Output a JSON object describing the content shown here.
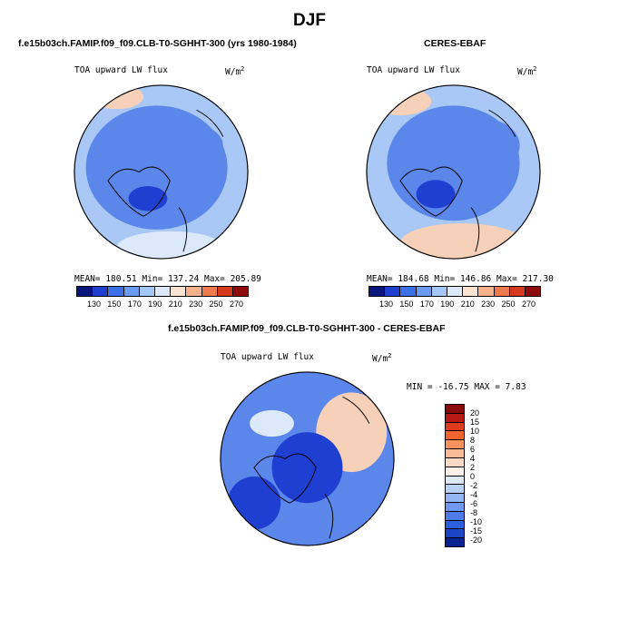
{
  "title": "DJF",
  "panels": [
    {
      "header": "f.e15b03ch.FAMIP.f09_f09.CLB-T0-SGHHT-300 (yrs 1980-1984)",
      "var_label": "TOA upward LW flux",
      "units": "W/m",
      "units_sup": "2",
      "stats": "MEAN= 180.51   Min= 137.24   Max= 205.89"
    },
    {
      "header": "CERES-EBAF",
      "var_label": "TOA upward LW flux",
      "units": "W/m",
      "units_sup": "2",
      "stats": "MEAN= 184.68   Min= 146.86   Max= 217.30"
    },
    {
      "header": "f.e15b03ch.FAMIP.f09_f09.CLB-T0-SGHHT-300 - CERES-EBAF",
      "var_label": "TOA upward LW flux",
      "units": "W/m",
      "units_sup": "2",
      "stats": "MIN = -16.75  MAX =   7.83"
    }
  ],
  "abs_colorbar": {
    "colors": [
      "#08157a",
      "#1f3fd1",
      "#3b6fe6",
      "#6a9bf0",
      "#a3c7f7",
      "#dbe9fb",
      "#fde3d2",
      "#f7b28c",
      "#ee7a50",
      "#d63a1e",
      "#8e0c0c"
    ],
    "labels": [
      "130",
      "150",
      "170",
      "190",
      "210",
      "230",
      "250",
      "270"
    ]
  },
  "diff_colorbar": {
    "colors": [
      "#8a0b0b",
      "#b51a14",
      "#dd3a1e",
      "#f0642f",
      "#f5915d",
      "#f8bb98",
      "#fbd8c3",
      "#fdf0e8",
      "#dde9fb",
      "#b9d0f7",
      "#94b6f3",
      "#6f98ee",
      "#4d7ce8",
      "#2c5fe0",
      "#1b45c4",
      "#0a2290"
    ],
    "labels": [
      "20",
      "15",
      "10",
      "8",
      "6",
      "4",
      "2",
      "0",
      "-2",
      "-4",
      "-6",
      "-8",
      "-10",
      "-15",
      "-20"
    ]
  },
  "colors": {
    "map_base_blue": "#5b86ea",
    "map_light_blue": "#a9c8f5",
    "map_dark_blue": "#1f3fd1",
    "map_pale": "#dbe9fb",
    "map_peach": "#f6d0b8"
  }
}
